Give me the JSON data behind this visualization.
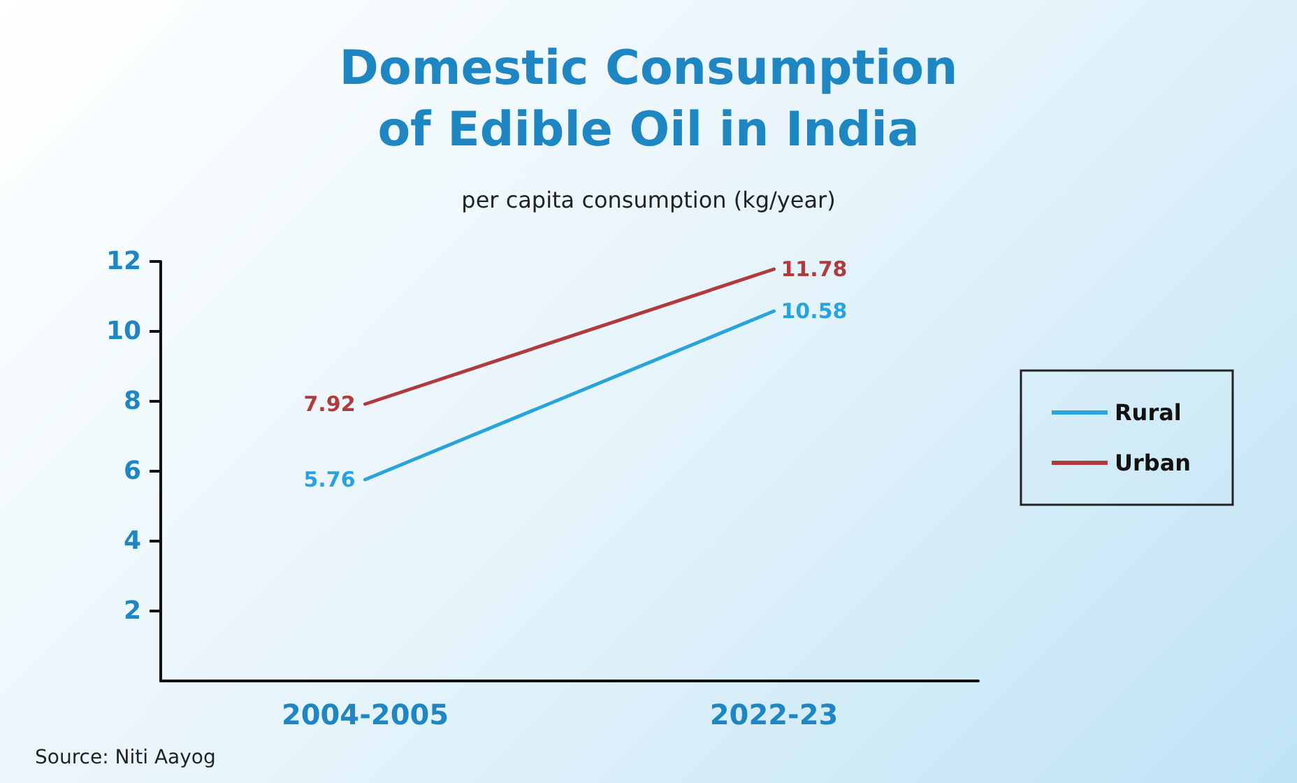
{
  "chart_data": {
    "type": "line",
    "title": "Domestic Consumption\nof Edible Oil in India",
    "subtitle": "per capita consumption (kg/year)",
    "categories": [
      "2004-2005",
      "2022-23"
    ],
    "series": [
      {
        "name": "Rural",
        "color": "#29a3dc",
        "values": [
          5.76,
          10.58
        ]
      },
      {
        "name": "Urban",
        "color": "#b03a3e",
        "values": [
          7.92,
          11.78
        ]
      }
    ],
    "ylim": [
      0,
      12
    ],
    "yticks": [
      2,
      4,
      6,
      8,
      10,
      12
    ],
    "grid": false,
    "legend": "right",
    "marker": "none",
    "line_style": "solid",
    "data_labels": true,
    "annotations": [
      "Source: Niti Aayog"
    ]
  }
}
